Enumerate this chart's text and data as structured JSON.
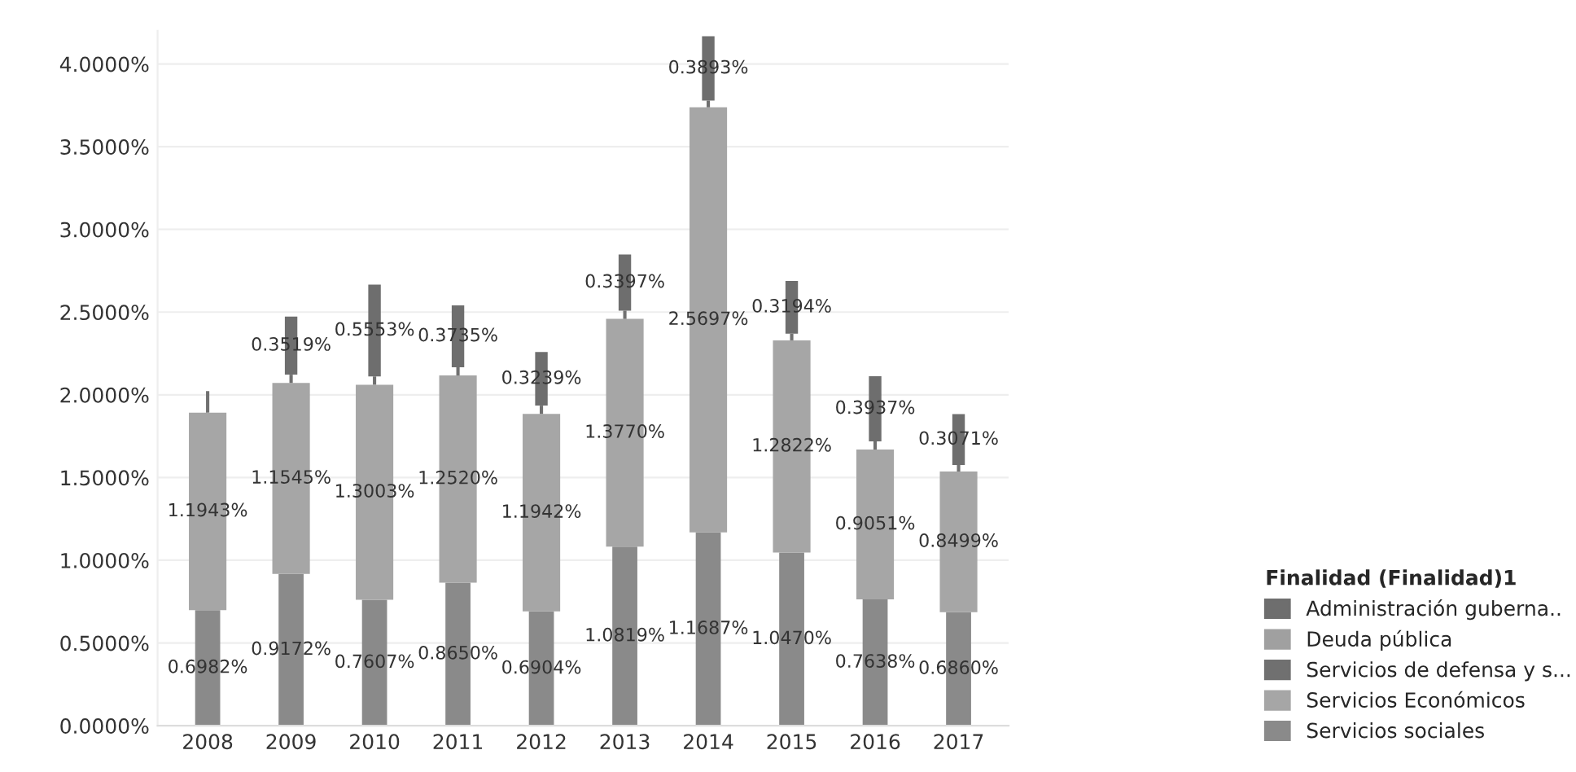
{
  "chart_data": {
    "type": "bar",
    "stacked": true,
    "categories": [
      "2008",
      "2009",
      "2010",
      "2011",
      "2012",
      "2013",
      "2014",
      "2015",
      "2016",
      "2017"
    ],
    "series": [
      {
        "name": "Servicios sociales",
        "color": "#8a8a8a",
        "values": [
          0.6982,
          0.9172,
          0.7607,
          0.865,
          0.6904,
          1.0819,
          1.1687,
          1.047,
          0.7638,
          0.686
        ],
        "value_labels": [
          "0.6982%",
          "0.9172%",
          "0.7607%",
          "0.8650%",
          "0.6904%",
          "1.0819%",
          "1.1687%",
          "1.0470%",
          "0.7638%",
          "0.6860%"
        ]
      },
      {
        "name": "Servicios Económicos",
        "color": "#a6a6a6",
        "values": [
          1.1943,
          1.1545,
          1.3003,
          1.252,
          1.1942,
          1.377,
          2.5697,
          1.2822,
          0.9051,
          0.8499
        ],
        "value_labels": [
          "1.1943%",
          "1.1545%",
          "1.3003%",
          "1.2520%",
          "1.1942%",
          "1.3770%",
          "2.5697%",
          "1.2822%",
          "0.9051%",
          "0.8499%"
        ]
      },
      {
        "name": "Servicios de defensa y s...",
        "color": "#707070",
        "values": [
          0.13,
          0.05,
          0.05,
          0.05,
          0.05,
          0.05,
          0.04,
          0.04,
          0.05,
          0.04
        ]
      },
      {
        "name": "Deuda pública",
        "color": "#a0a0a0",
        "values": [
          null,
          null,
          null,
          null,
          null,
          null,
          null,
          null,
          null,
          null
        ]
      },
      {
        "name": "Administración guberna..",
        "color": "#6e6e6e",
        "values": [
          null,
          0.3519,
          0.5553,
          0.3735,
          0.3239,
          0.3397,
          0.3893,
          0.3194,
          0.3937,
          0.3071
        ],
        "value_labels": [
          null,
          "0.3519%",
          "0.5553%",
          "0.3735%",
          "0.3239%",
          "0.3397%",
          "0.3893%",
          "0.3194%",
          "0.3937%",
          "0.3071%"
        ]
      }
    ],
    "ylim": [
      0,
      4.2
    ],
    "yticks": [
      {
        "value": 0,
        "label": "0.0000%"
      },
      {
        "value": 0.5,
        "label": "0.5000%"
      },
      {
        "value": 1,
        "label": "1.0000%"
      },
      {
        "value": 1.5,
        "label": "1.5000%"
      },
      {
        "value": 2,
        "label": "2.0000%"
      },
      {
        "value": 2.5,
        "label": "2.5000%"
      },
      {
        "value": 3,
        "label": "3.0000%"
      },
      {
        "value": 3.5,
        "label": "3.5000%"
      },
      {
        "value": 4,
        "label": "4.0000%"
      }
    ],
    "grid": "y",
    "legend": "bottom right",
    "legend_title": "Finalidad (Finalidad)1"
  }
}
